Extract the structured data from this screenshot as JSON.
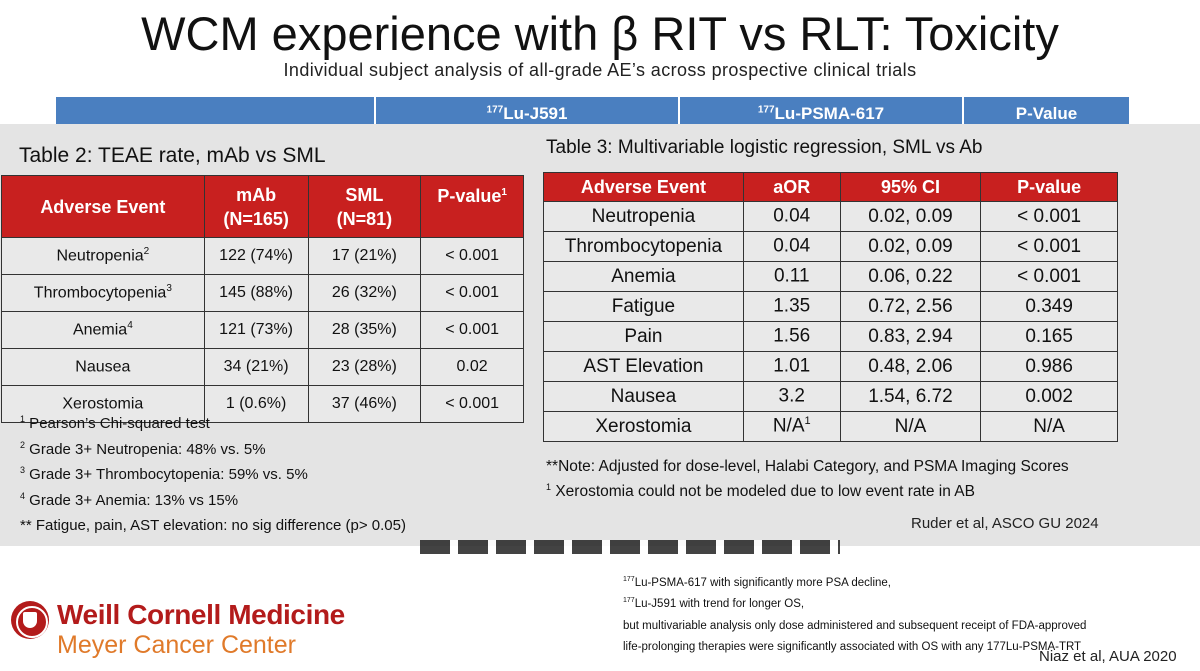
{
  "slide": {
    "title": "WCM experience with β RIT vs RLT:  Toxicity",
    "subtitle": "Individual subject analysis of all-grade AE’s across prospective clinical trials",
    "header_bar": [
      {
        "sup": "",
        "text": ""
      },
      {
        "sup": "177",
        "text": "Lu-J591"
      },
      {
        "sup": "177",
        "text": "Lu-PSMA-617"
      },
      {
        "sup": "",
        "text": "P-Value"
      }
    ]
  },
  "table2": {
    "title": "Table 2: TEAE rate, mAb vs SML",
    "headers": [
      {
        "line1": "Adverse Event",
        "line2": "",
        "sup": ""
      },
      {
        "line1": "mAb",
        "line2": "(N=165)",
        "sup": ""
      },
      {
        "line1": "SML",
        "line2": "(N=81)",
        "sup": ""
      },
      {
        "line1": "P-value",
        "line2": "",
        "sup": "1"
      }
    ],
    "rows": [
      {
        "event": "Neutropenia",
        "sup": "2",
        "mab": "122 (74%)",
        "sml": "17 (21%)",
        "p": "< 0.001"
      },
      {
        "event": "Thrombocytopenia",
        "sup": "3",
        "mab": "145 (88%)",
        "sml": "26 (32%)",
        "p": "< 0.001"
      },
      {
        "event": "Anemia",
        "sup": "4",
        "mab": "121 (73%)",
        "sml": "28 (35%)",
        "p": "< 0.001"
      },
      {
        "event": "Nausea",
        "sup": "",
        "mab": "34 (21%)",
        "sml": "23 (28%)",
        "p": "0.02"
      },
      {
        "event": "Xerostomia",
        "sup": "",
        "mab": "1 (0.6%)",
        "sml": "37 (46%)",
        "p": "< 0.001"
      }
    ],
    "footnotes": [
      {
        "sup": "1",
        "text": " Pearson’s Chi-squared test"
      },
      {
        "sup": "2",
        "text": " Grade 3+ Neutropenia: 48% vs. 5%"
      },
      {
        "sup": "3",
        "text": " Grade 3+ Thrombocytopenia: 59% vs. 5%"
      },
      {
        "sup": "4",
        "text": " Grade 3+ Anemia: 13% vs 15%"
      },
      {
        "sup": "",
        "text": "** Fatigue, pain, AST elevation: no sig difference (p> 0.05)"
      }
    ]
  },
  "table3": {
    "title": "Table 3: Multivariable logistic regression, SML vs Ab",
    "headers": [
      "Adverse Event",
      "aOR",
      "95% CI",
      "P-value"
    ],
    "rows": [
      {
        "event": "Neutropenia",
        "aor": "0.04",
        "aor_sup": "",
        "ci": "0.02, 0.09",
        "p": "< 0.001"
      },
      {
        "event": "Thrombocytopenia",
        "aor": "0.04",
        "aor_sup": "",
        "ci": "0.02, 0.09",
        "p": "< 0.001"
      },
      {
        "event": "Anemia",
        "aor": "0.11",
        "aor_sup": "",
        "ci": "0.06, 0.22",
        "p": "< 0.001"
      },
      {
        "event": "Fatigue",
        "aor": "1.35",
        "aor_sup": "",
        "ci": "0.72, 2.56",
        "p": "0.349"
      },
      {
        "event": "Pain",
        "aor": "1.56",
        "aor_sup": "",
        "ci": "0.83, 2.94",
        "p": "0.165"
      },
      {
        "event": "AST Elevation",
        "aor": "1.01",
        "aor_sup": "",
        "ci": "0.48, 2.06",
        "p": "0.986"
      },
      {
        "event": "Nausea",
        "aor": "3.2",
        "aor_sup": "",
        "ci": "1.54, 6.72",
        "p": "0.002"
      },
      {
        "event": "Xerostomia",
        "aor": "N/A",
        "aor_sup": "1",
        "ci": "N/A",
        "p": "N/A"
      }
    ],
    "footnotes": [
      {
        "sup": "",
        "text": "**Note: Adjusted for dose-level, Halabi Category, and PSMA Imaging Scores"
      },
      {
        "sup": "1",
        "text": " Xerostomia could not be modeled due to low event rate in AB"
      }
    ],
    "citation": "Ruder et al, ASCO GU 2024"
  },
  "lower_notes": [
    {
      "sup": "177",
      "text": "Lu-PSMA-617 with significantly more PSA decline,"
    },
    {
      "sup": "177",
      "text": "Lu-J591 with trend for longer OS,"
    },
    {
      "sup": "",
      "text": "but multivariable analysis only dose administered and subsequent receipt of FDA-approved"
    },
    {
      "sup": "",
      "text": "life-prolonging therapies were significantly associated with OS with any 177Lu-PSMA-TRT"
    }
  ],
  "citation2": "Niaz et al, AUA 2020",
  "logo": {
    "main": "Weill Cornell Medicine",
    "sub": "Meyer Cancer Center",
    "icon": "wcm-seal-icon",
    "colors": {
      "main": "#b31b1b",
      "sub": "#e07a2a"
    }
  },
  "colors": {
    "table_header": "#c8201f",
    "header_bar": "#4a7fc0",
    "panel": "#e4e4e4"
  }
}
